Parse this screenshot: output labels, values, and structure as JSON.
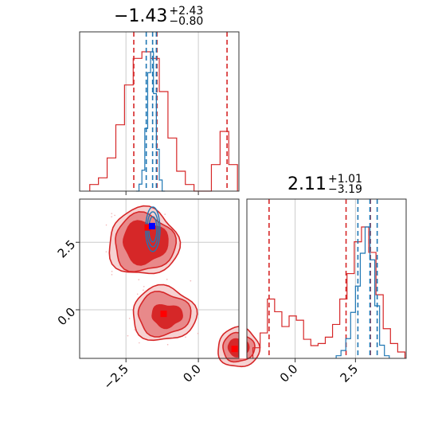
{
  "colors": {
    "red": "#d62728",
    "blue": "#1f77b4",
    "red_fill_dark": "#d62728",
    "red_fill_mid": "#e8898a",
    "red_fill_light": "#f6d2d2",
    "grid": "#cccccc",
    "axis": "#333333",
    "marker_red": "#ff0000",
    "marker_blue": "#0000ff"
  },
  "titles": [
    {
      "value": "−1.43",
      "upper": "+2.43",
      "lower": "−0.80"
    },
    {
      "value": "2.11",
      "upper": "+1.01",
      "lower": "−3.19"
    }
  ],
  "chart_data": [
    {
      "type": "histogram",
      "panel": "top-left marginal (parameter 1)",
      "xlim": [
        -4.1,
        1.4
      ],
      "grid": true,
      "series": [
        {
          "name": "",
          "color": "#d62728",
          "quantiles": [
            -2.23,
            -1.43,
            0.99
          ],
          "bins_x": [
            -3.6,
            -3.3,
            -3.0,
            -2.7,
            -2.4,
            -2.1,
            -1.8,
            -1.5,
            -1.2,
            -0.9,
            -0.6,
            -0.3,
            0.0,
            0.3,
            0.6,
            0.9,
            1.2
          ],
          "counts": [
            0.01,
            0.02,
            0.05,
            0.1,
            0.16,
            0.2,
            0.21,
            0.2,
            0.15,
            0.08,
            0.03,
            0.01,
            0.0,
            0.0,
            0.04,
            0.09,
            0.04
          ]
        },
        {
          "name": "",
          "color": "#1f77b4",
          "quantiles": [
            -1.8,
            -1.58,
            -1.45
          ],
          "bins_x": [
            -2.1,
            -2.0,
            -1.9,
            -1.8,
            -1.7,
            -1.6,
            -1.5,
            -1.4,
            -1.3,
            -1.2
          ],
          "counts": [
            0.0,
            0.05,
            0.15,
            0.45,
            0.85,
            1.0,
            0.7,
            0.3,
            0.08,
            0.0
          ]
        }
      ]
    },
    {
      "type": "contour",
      "panel": "bottom-left joint (parameter 1 vs parameter 2)",
      "xlim": [
        -4.1,
        1.4
      ],
      "ylim": [
        -1.8,
        4.1
      ],
      "xticks": [
        "−2.5",
        "0.0"
      ],
      "yticks": [
        "0.0",
        "2.5"
      ],
      "grid": true,
      "red_modes": [
        {
          "x": -1.9,
          "y": 2.5
        },
        {
          "x": -1.2,
          "y": -0.1
        },
        {
          "x": 1.3,
          "y": -1.4
        }
      ],
      "red_markers": [
        {
          "x": -1.75,
          "y": 3.05
        },
        {
          "x": -1.2,
          "y": -0.15
        },
        {
          "x": 1.25,
          "y": -1.45
        }
      ],
      "blue_marker": {
        "x": -1.6,
        "y": 3.1
      }
    },
    {
      "type": "histogram",
      "panel": "bottom-right marginal (parameter 2)",
      "xlim": [
        -2.0,
        4.6
      ],
      "xticks": [
        "0.0",
        "2.5"
      ],
      "grid": true,
      "series": [
        {
          "name": "",
          "color": "#d62728",
          "quantiles": [
            -1.08,
            2.11,
            3.12
          ],
          "bins_x": [
            -1.6,
            -1.3,
            -1.0,
            -0.7,
            -0.4,
            -0.1,
            0.2,
            0.5,
            0.8,
            1.1,
            1.4,
            1.7,
            2.0,
            2.3,
            2.6,
            2.9,
            3.2,
            3.5,
            3.8,
            4.1,
            4.4
          ],
          "counts": [
            0.05,
            0.12,
            0.28,
            0.22,
            0.15,
            0.2,
            0.18,
            0.09,
            0.06,
            0.07,
            0.1,
            0.16,
            0.28,
            0.4,
            0.55,
            0.62,
            0.5,
            0.3,
            0.14,
            0.07,
            0.03
          ]
        },
        {
          "name": "",
          "color": "#1f77b4",
          "quantiles": [
            2.6,
            3.1,
            3.4
          ],
          "bins_x": [
            1.8,
            2.0,
            2.2,
            2.4,
            2.6,
            2.8,
            3.0,
            3.2,
            3.4,
            3.6,
            3.8
          ],
          "counts": [
            0.02,
            0.06,
            0.15,
            0.35,
            0.55,
            0.8,
            1.0,
            0.75,
            0.4,
            0.1,
            0.02
          ]
        }
      ]
    }
  ]
}
